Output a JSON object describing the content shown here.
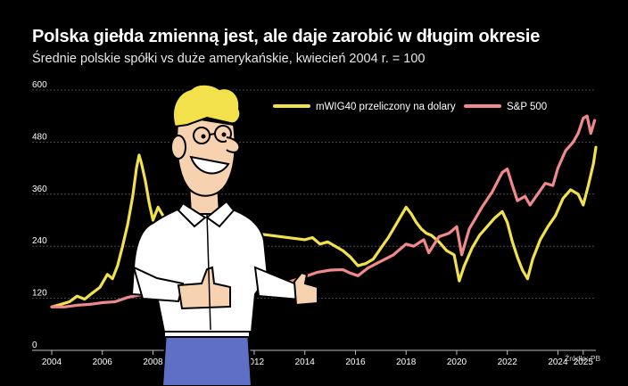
{
  "header": {
    "title": "Polska giełda zmienną jest, ale daje zarobić w długim okresie",
    "subtitle": "Średnie polskie spółki vs duże amerykańskie, kwiecień 2004 r. = 100",
    "source": "Źródło: PB"
  },
  "colors": {
    "background": "#000000",
    "mwig": "#f2e14b",
    "sp": "#f08a8a",
    "grid": "#5a5a5a"
  },
  "chart_data": {
    "type": "line",
    "title": "Polska giełda zmienną jest, ale daje zarobić w długim okresie",
    "subtitle": "Średnie polskie spółki vs duże amerykańskie, kwiecień 2004 r. = 100",
    "xlim": [
      2004,
      2025.5
    ],
    "ylim": [
      0,
      600
    ],
    "x_ticks": [
      {
        "value": 2004,
        "label": "2004"
      },
      {
        "value": 2006,
        "label": "2006"
      },
      {
        "value": 2008,
        "label": "2008"
      },
      {
        "value": 2012,
        "label": "2012"
      },
      {
        "value": 2014,
        "label": "2014"
      },
      {
        "value": 2016,
        "label": "2016"
      },
      {
        "value": 2018,
        "label": "2018"
      },
      {
        "value": 2020,
        "label": "2020"
      },
      {
        "value": 2022,
        "label": "2022"
      },
      {
        "value": 2024,
        "label": "2024"
      },
      {
        "value": 2025,
        "label": "2025"
      }
    ],
    "y_ticks": [
      {
        "value": 0,
        "label": "0"
      },
      {
        "value": 120,
        "label": "120"
      },
      {
        "value": 240,
        "label": "240"
      },
      {
        "value": 360,
        "label": "360"
      },
      {
        "value": 480,
        "label": "480"
      },
      {
        "value": 600,
        "label": "600"
      }
    ],
    "grid": "horizontal",
    "legend_position": "top-right",
    "series": [
      {
        "name": "mWIG40 przeliczony na dolary",
        "color": "#f2e14b",
        "points": [
          [
            2004.0,
            100
          ],
          [
            2004.3,
            105
          ],
          [
            2004.7,
            112
          ],
          [
            2005.0,
            125
          ],
          [
            2005.3,
            118
          ],
          [
            2005.6,
            132
          ],
          [
            2005.9,
            145
          ],
          [
            2006.2,
            175
          ],
          [
            2006.4,
            165
          ],
          [
            2006.6,
            195
          ],
          [
            2006.8,
            240
          ],
          [
            2007.0,
            290
          ],
          [
            2007.2,
            355
          ],
          [
            2007.35,
            420
          ],
          [
            2007.45,
            450
          ],
          [
            2007.55,
            430
          ],
          [
            2007.7,
            390
          ],
          [
            2007.85,
            340
          ],
          [
            2008.0,
            300
          ],
          [
            2008.2,
            330
          ],
          [
            2008.4,
            310
          ],
          [
            2008.6,
            295
          ],
          [
            2014.0,
            255
          ],
          [
            2014.3,
            260
          ],
          [
            2014.6,
            245
          ],
          [
            2014.9,
            250
          ],
          [
            2015.2,
            240
          ],
          [
            2015.5,
            230
          ],
          [
            2015.8,
            215
          ],
          [
            2016.1,
            195
          ],
          [
            2016.4,
            200
          ],
          [
            2016.7,
            210
          ],
          [
            2017.0,
            235
          ],
          [
            2017.3,
            260
          ],
          [
            2017.6,
            290
          ],
          [
            2017.9,
            320
          ],
          [
            2018.0,
            330
          ],
          [
            2018.2,
            315
          ],
          [
            2018.4,
            295
          ],
          [
            2018.6,
            280
          ],
          [
            2018.8,
            270
          ],
          [
            2019.0,
            265
          ],
          [
            2019.3,
            250
          ],
          [
            2019.6,
            230
          ],
          [
            2019.9,
            220
          ],
          [
            2020.1,
            160
          ],
          [
            2020.3,
            195
          ],
          [
            2020.6,
            235
          ],
          [
            2020.9,
            265
          ],
          [
            2021.2,
            285
          ],
          [
            2021.5,
            305
          ],
          [
            2021.8,
            320
          ],
          [
            2022.0,
            295
          ],
          [
            2022.2,
            250
          ],
          [
            2022.4,
            215
          ],
          [
            2022.6,
            185
          ],
          [
            2022.8,
            165
          ],
          [
            2023.0,
            210
          ],
          [
            2023.3,
            255
          ],
          [
            2023.6,
            285
          ],
          [
            2023.9,
            310
          ],
          [
            2024.2,
            350
          ],
          [
            2024.5,
            370
          ],
          [
            2024.8,
            360
          ],
          [
            2025.0,
            335
          ],
          [
            2025.2,
            380
          ],
          [
            2025.4,
            430
          ],
          [
            2025.5,
            468
          ]
        ]
      },
      {
        "name": "S&P 500",
        "color": "#f08a8a",
        "points": [
          [
            2004.0,
            100
          ],
          [
            2004.5,
            100
          ],
          [
            2005.0,
            104
          ],
          [
            2005.5,
            106
          ],
          [
            2006.0,
            110
          ],
          [
            2006.5,
            112
          ],
          [
            2007.0,
            122
          ],
          [
            2007.5,
            128
          ],
          [
            2013.0,
            150
          ],
          [
            2013.5,
            160
          ],
          [
            2014.0,
            170
          ],
          [
            2014.5,
            180
          ],
          [
            2015.0,
            185
          ],
          [
            2015.5,
            186
          ],
          [
            2015.8,
            178
          ],
          [
            2016.1,
            172
          ],
          [
            2016.5,
            190
          ],
          [
            2017.0,
            205
          ],
          [
            2017.5,
            220
          ],
          [
            2018.0,
            245
          ],
          [
            2018.3,
            240
          ],
          [
            2018.7,
            255
          ],
          [
            2018.9,
            225
          ],
          [
            2019.3,
            262
          ],
          [
            2019.7,
            270
          ],
          [
            2020.0,
            285
          ],
          [
            2020.2,
            220
          ],
          [
            2020.5,
            280
          ],
          [
            2020.8,
            310
          ],
          [
            2021.0,
            330
          ],
          [
            2021.4,
            365
          ],
          [
            2021.8,
            410
          ],
          [
            2022.0,
            418
          ],
          [
            2022.2,
            380
          ],
          [
            2022.4,
            345
          ],
          [
            2022.7,
            355
          ],
          [
            2022.9,
            335
          ],
          [
            2023.2,
            360
          ],
          [
            2023.5,
            385
          ],
          [
            2023.8,
            380
          ],
          [
            2024.0,
            420
          ],
          [
            2024.3,
            460
          ],
          [
            2024.6,
            480
          ],
          [
            2024.8,
            500
          ],
          [
            2025.0,
            535
          ],
          [
            2025.15,
            540
          ],
          [
            2025.3,
            500
          ],
          [
            2025.45,
            530
          ]
        ]
      }
    ]
  }
}
